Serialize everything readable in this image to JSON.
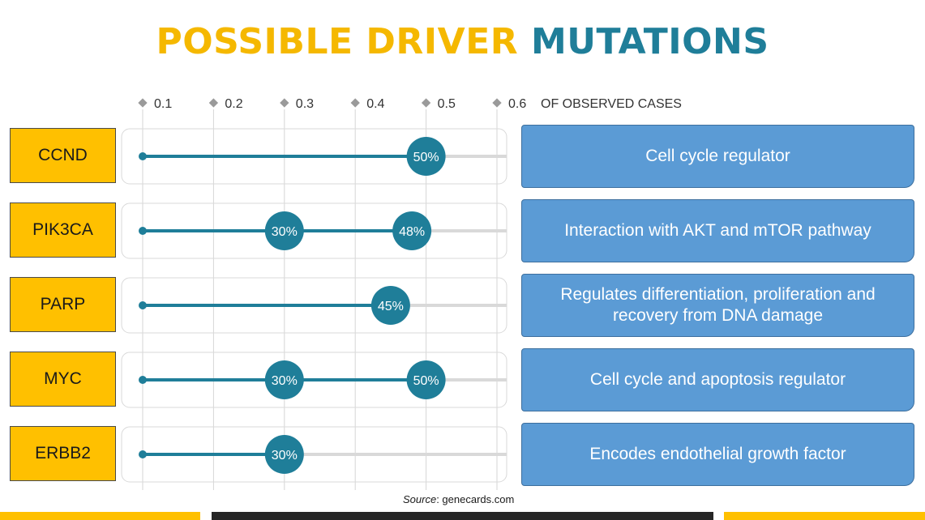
{
  "title": {
    "part1": "POSSIBLE DRIVER",
    "part2": "MUTATIONS"
  },
  "colors": {
    "gold": "#FFC000",
    "teal": "#1F7E99",
    "blue": "#5B9BD5",
    "dark": "#262626"
  },
  "source": {
    "label": "Source",
    "value": ": genecards.com"
  },
  "chart_data": {
    "type": "dumbbell",
    "title": "POSSIBLE DRIVER MUTATIONS",
    "xlabel": "OF OBSERVED CASES",
    "xlim": [
      0.1,
      0.6
    ],
    "ticks": [
      {
        "value": 0.1,
        "label": "0.1"
      },
      {
        "value": 0.2,
        "label": "0.2"
      },
      {
        "value": 0.3,
        "label": "0.3"
      },
      {
        "value": 0.4,
        "label": "0.4"
      },
      {
        "value": 0.5,
        "label": "0.5"
      },
      {
        "value": 0.6,
        "label": "0.6"
      }
    ],
    "rows": [
      {
        "gene": "CCND",
        "description": "Cell cycle regulator",
        "markers": [
          {
            "value": 0.5,
            "label": "50%"
          }
        ]
      },
      {
        "gene": "PIK3CA",
        "description": "Interaction with AKT and mTOR pathway",
        "markers": [
          {
            "value": 0.3,
            "label": "30%"
          },
          {
            "value": 0.48,
            "label": "48%"
          }
        ]
      },
      {
        "gene": "PARP",
        "description": "Regulates differentiation, proliferation and recovery from DNA damage",
        "markers": [
          {
            "value": 0.45,
            "label": "45%"
          }
        ]
      },
      {
        "gene": "MYC",
        "description": "Cell cycle and apoptosis regulator",
        "markers": [
          {
            "value": 0.3,
            "label": "30%"
          },
          {
            "value": 0.5,
            "label": "50%"
          }
        ]
      },
      {
        "gene": "ERBB2",
        "description": "Encodes endothelial growth factor",
        "markers": [
          {
            "value": 0.3,
            "label": "30%"
          }
        ]
      }
    ]
  }
}
